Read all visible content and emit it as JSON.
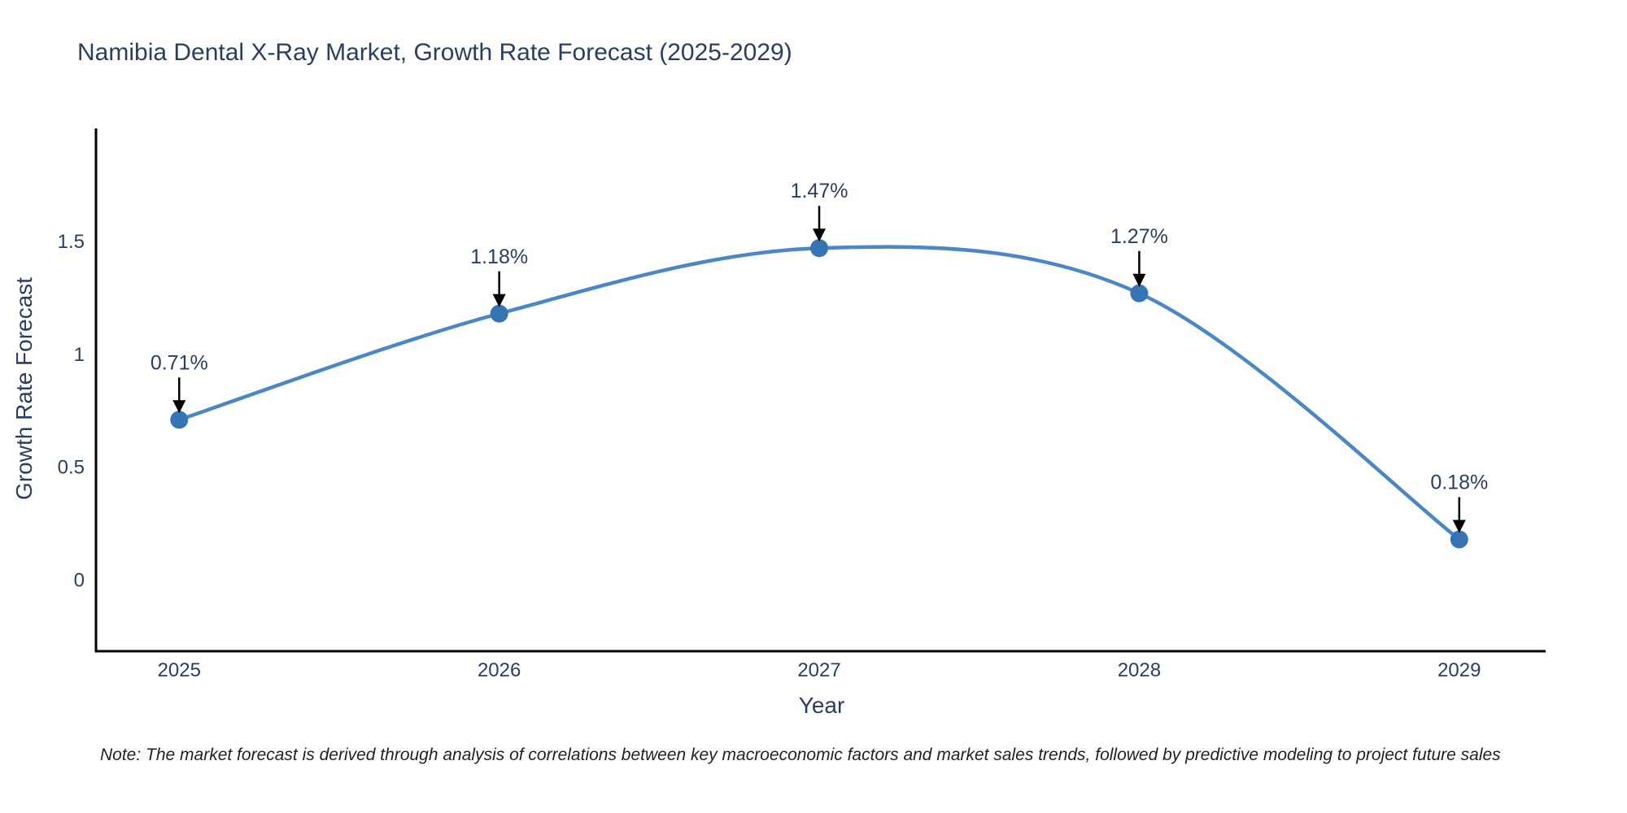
{
  "title": "Namibia Dental X-Ray Market, Growth Rate Forecast (2025-2029)",
  "note": "Note: The market forecast is derived through analysis of correlations between key macroeconomic factors and market sales trends, followed by predictive modeling to project future sales",
  "chart_data": {
    "type": "line",
    "title": "Namibia Dental X-Ray Market, Growth Rate Forecast (2025-2029)",
    "xlabel": "Year",
    "ylabel": "Growth Rate Forecast",
    "x": [
      2025,
      2026,
      2027,
      2028,
      2029
    ],
    "values": [
      0.71,
      1.18,
      1.47,
      1.27,
      0.18
    ],
    "series": [
      {
        "name": "Growth Rate Forecast",
        "values": [
          0.71,
          1.18,
          1.47,
          1.27,
          0.18
        ]
      }
    ],
    "point_labels": [
      "0.71%",
      "1.18%",
      "1.47%",
      "1.27%",
      "0.18%"
    ],
    "xtick_labels": [
      "2025",
      "2026",
      "2027",
      "2028",
      "2029"
    ],
    "ytick_values": [
      0,
      0.5,
      1,
      1.5
    ],
    "ytick_labels": [
      "0",
      "0.5",
      "1",
      "1.5"
    ],
    "xlim": [
      2024.74,
      2029.27
    ],
    "ylim": [
      -0.315,
      2.0
    ],
    "grid": false,
    "legend": "none",
    "line_shape": "spline",
    "colors": {
      "line": "#4a87c4",
      "marker": "#3674b3",
      "text": "#2a3f5f",
      "axis": "#000000",
      "arrow": "#000000"
    }
  }
}
